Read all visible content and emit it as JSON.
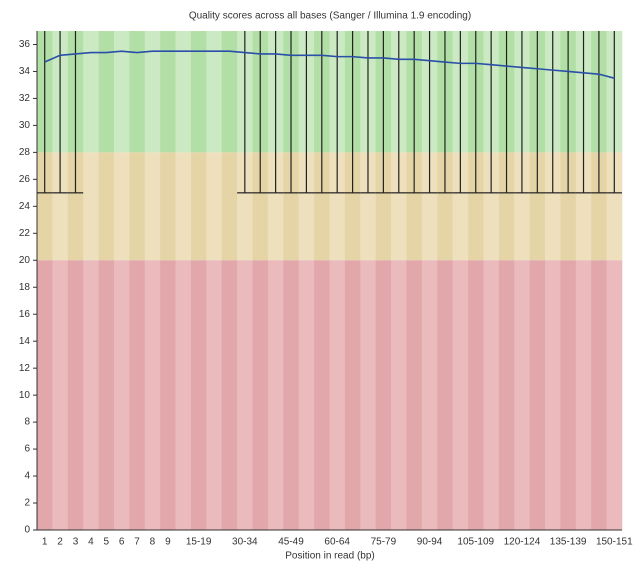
{
  "chart_data": {
    "type": "boxline",
    "title": "Quality scores across all bases (Sanger / Illumina 1.9 encoding)",
    "x_label": "Position in read (bp)",
    "categories": [
      "1",
      "2",
      "3",
      "4",
      "5",
      "6",
      "7",
      "8",
      "9",
      null,
      "15-19",
      null,
      null,
      "30-34",
      null,
      null,
      "45-49",
      null,
      null,
      "60-64",
      null,
      null,
      "75-79",
      null,
      null,
      "90-94",
      null,
      null,
      "105-109",
      null,
      null,
      "120-124",
      null,
      null,
      "135-139",
      null,
      null,
      "150-151"
    ],
    "mean": {
      "color": "#2a4fa8",
      "values": [
        34.7,
        35.2,
        35.3,
        35.4,
        35.4,
        35.5,
        35.4,
        35.5,
        35.5,
        35.5,
        35.5,
        35.5,
        35.5,
        35.4,
        35.3,
        35.3,
        35.2,
        35.2,
        35.2,
        35.1,
        35.1,
        35.0,
        35.0,
        34.9,
        34.9,
        34.8,
        34.7,
        34.6,
        34.6,
        34.5,
        34.4,
        34.3,
        34.2,
        34.1,
        34.0,
        33.9,
        33.8,
        33.5
      ]
    },
    "whisker_color": "#222222",
    "whisker_low": [
      25,
      25,
      25,
      null,
      null,
      null,
      null,
      null,
      null,
      null,
      null,
      null,
      null,
      25,
      25,
      25,
      25,
      25,
      25,
      25,
      25,
      25,
      25,
      25,
      25,
      25,
      25,
      25,
      25,
      25,
      25,
      25,
      25,
      25,
      25,
      25,
      25,
      25
    ],
    "whisker_high": [
      37,
      37,
      37,
      null,
      null,
      null,
      null,
      null,
      null,
      null,
      null,
      null,
      null,
      37,
      37,
      37,
      37,
      37,
      37,
      37,
      37,
      37,
      37,
      37,
      37,
      37,
      37,
      37,
      37,
      37,
      37,
      37,
      37,
      37,
      37,
      37,
      37,
      37
    ],
    "zones": [
      {
        "from": 28,
        "to": 37,
        "color": "#b2dfa6",
        "alt_color": "#cbe9c2"
      },
      {
        "from": 20,
        "to": 28,
        "color": "#e5d5a6",
        "alt_color": "#eee0bd"
      },
      {
        "from": 0,
        "to": 20,
        "color": "#e2a7aa",
        "alt_color": "#ebbabd"
      }
    ],
    "ylim": [
      0,
      37
    ],
    "yticks": [
      0,
      2,
      4,
      6,
      8,
      10,
      12,
      14,
      16,
      18,
      20,
      22,
      24,
      26,
      28,
      30,
      32,
      34,
      36
    ]
  }
}
